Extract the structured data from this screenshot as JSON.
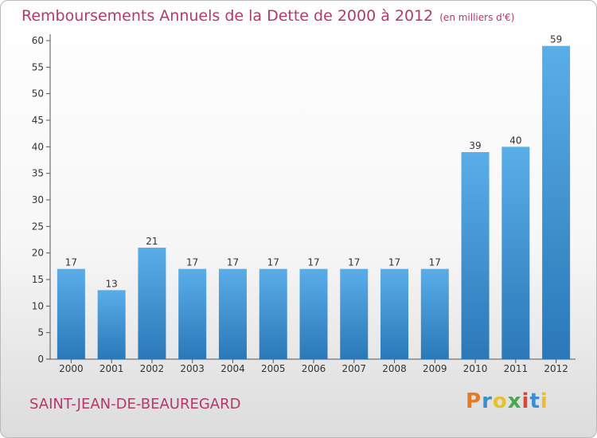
{
  "title": "Remboursements Annuels de la Dette de 2000 à 2012",
  "subtitle": "(en milliers d'€)",
  "commune": "SAINT-JEAN-DE-BEAUREGARD",
  "logo": {
    "letters": [
      "P",
      "r",
      "o",
      "x",
      "i",
      "t",
      "i"
    ],
    "colors": [
      "#e27a26",
      "#3a8fd4",
      "#e8c02c",
      "#4aa84a",
      "#d44a3a",
      "#3a8fd4",
      "#e8c02c"
    ]
  },
  "colors": {
    "bar_light": "#5aaee8",
    "bar_dark": "#2a78b8",
    "accent": "#b03a6a"
  },
  "chart_data": {
    "type": "bar",
    "title": "Remboursements Annuels de la Dette de 2000 à 2012",
    "categories": [
      "2000",
      "2001",
      "2002",
      "2003",
      "2004",
      "2005",
      "2006",
      "2007",
      "2008",
      "2009",
      "2010",
      "2011",
      "2012"
    ],
    "values": [
      17,
      13,
      21,
      17,
      17,
      17,
      17,
      17,
      17,
      17,
      39,
      40,
      59
    ],
    "ylim": [
      0,
      60
    ],
    "yticks": [
      0,
      5,
      10,
      15,
      20,
      25,
      30,
      35,
      40,
      45,
      50,
      55,
      60
    ],
    "xlabel": "",
    "ylabel": ""
  }
}
